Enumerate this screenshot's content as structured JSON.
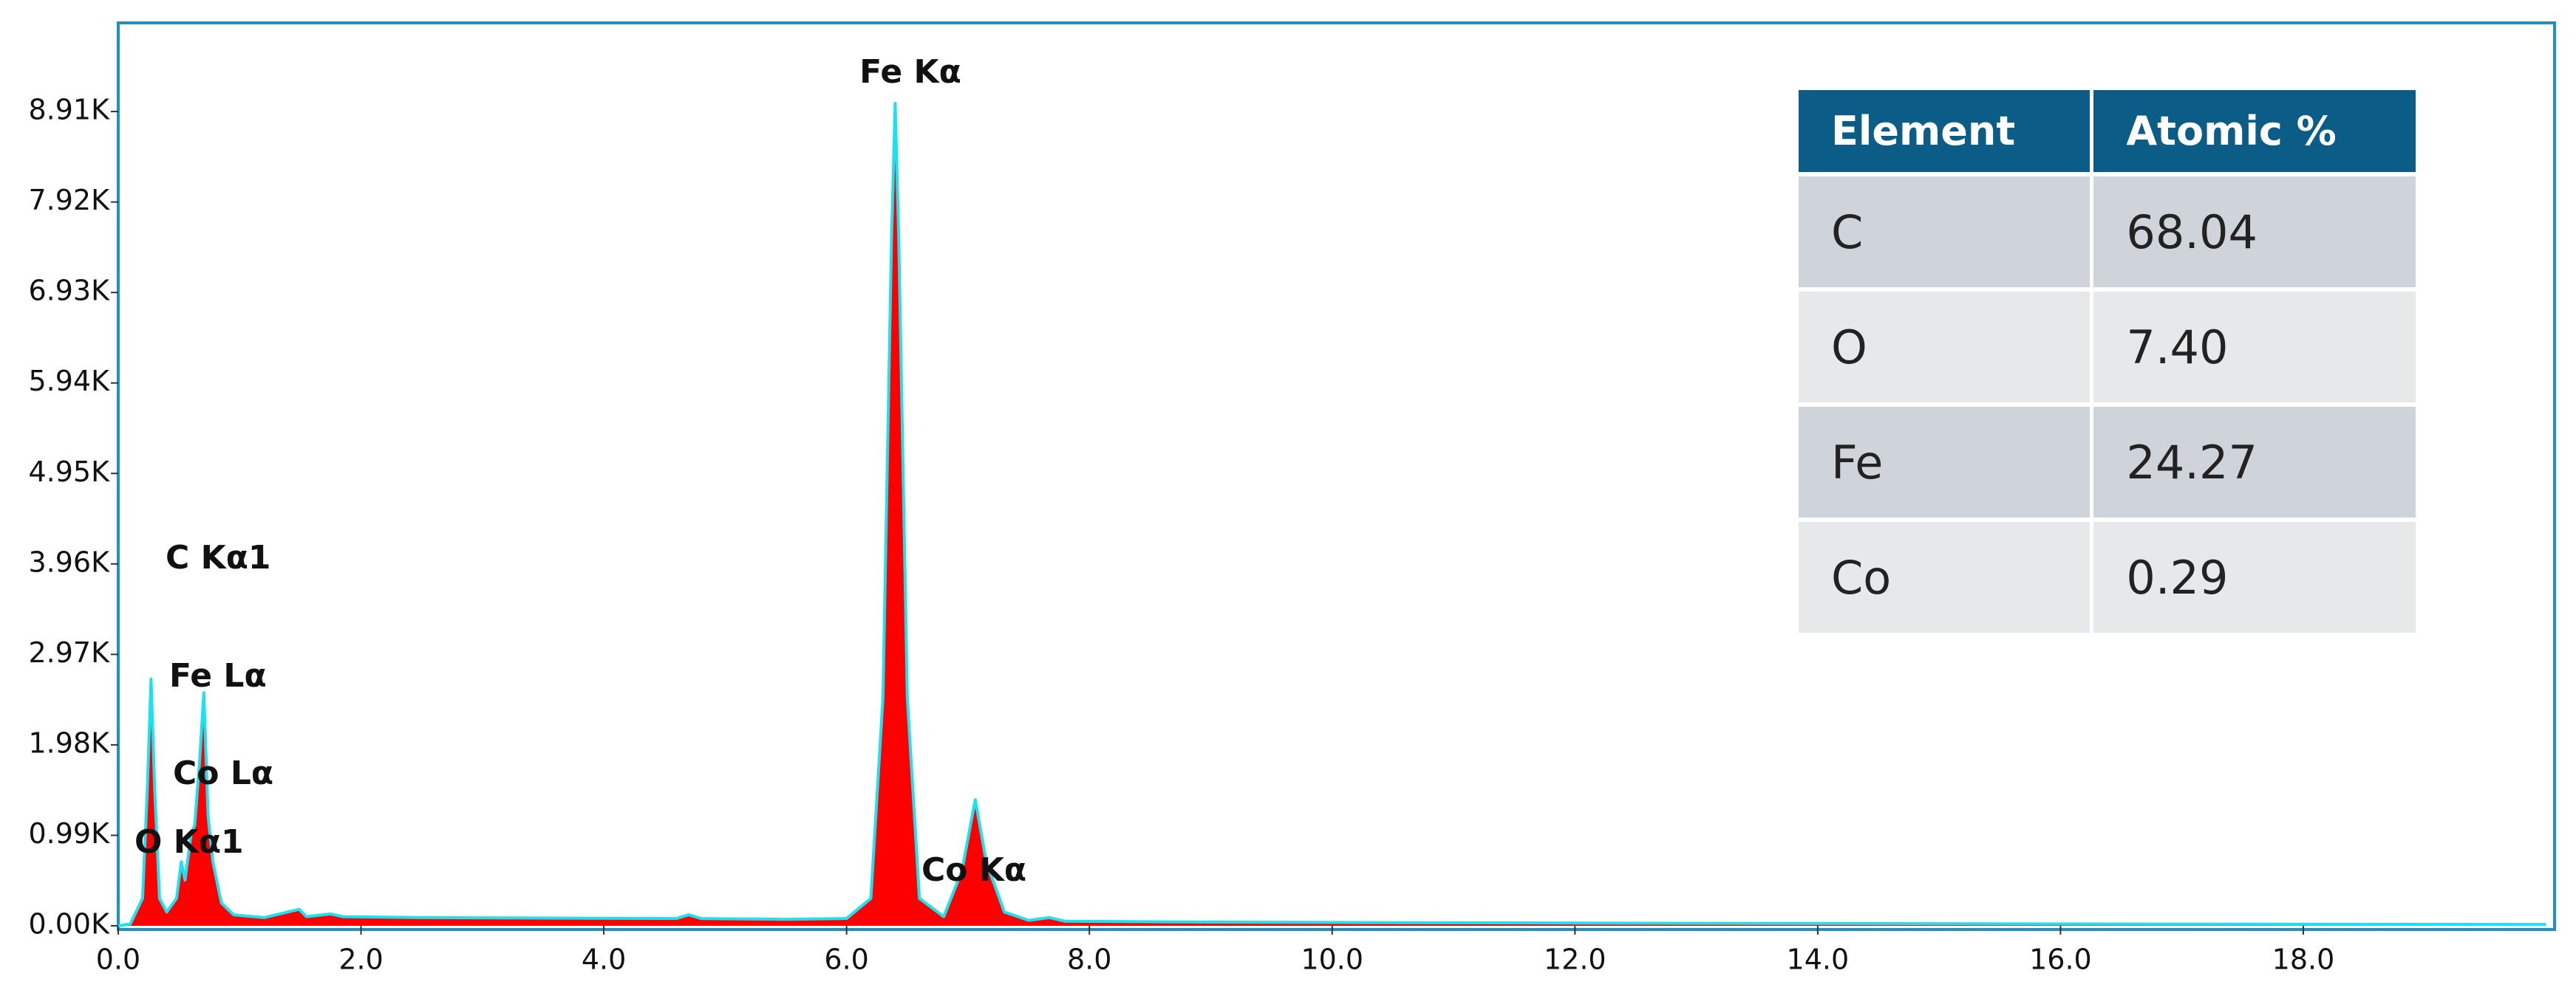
{
  "chart_data": {
    "type": "area",
    "x": [
      0.0,
      0.1,
      0.2,
      0.24,
      0.27,
      0.3,
      0.34,
      0.4,
      0.48,
      0.52,
      0.55,
      0.6,
      0.63,
      0.67,
      0.705,
      0.74,
      0.78,
      0.85,
      0.95,
      1.2,
      1.49,
      1.55,
      1.75,
      1.85,
      2.5,
      3.5,
      4.6,
      4.7,
      4.8,
      5.5,
      6.0,
      6.2,
      6.3,
      6.37,
      6.4,
      6.43,
      6.5,
      6.6,
      6.8,
      6.95,
      7.06,
      7.15,
      7.3,
      7.5,
      7.67,
      7.8,
      9.0,
      12.0,
      16.0,
      20.0
    ],
    "values": [
      0,
      20,
      300,
      1500,
      2700,
      1500,
      300,
      150,
      300,
      700,
      500,
      1000,
      1100,
      1800,
      2550,
      1200,
      700,
      250,
      120,
      90,
      180,
      100,
      130,
      100,
      90,
      85,
      80,
      120,
      80,
      70,
      80,
      300,
      2500,
      7500,
      9000,
      7500,
      2500,
      300,
      100,
      600,
      1380,
      700,
      150,
      60,
      90,
      50,
      40,
      30,
      20,
      15
    ],
    "color": "#ff0000",
    "line_color": "#19e3f0",
    "xlim": [
      0,
      20.07
    ],
    "ylim": [
      0,
      9880
    ],
    "xticks": [
      {
        "value": 0,
        "label": "0.0"
      },
      {
        "value": 2,
        "label": "2.0"
      },
      {
        "value": 4,
        "label": "4.0"
      },
      {
        "value": 6,
        "label": "6.0"
      },
      {
        "value": 8,
        "label": "8.0"
      },
      {
        "value": 10,
        "label": "10.0"
      },
      {
        "value": 12,
        "label": "12.0"
      },
      {
        "value": 14,
        "label": "14.0"
      },
      {
        "value": 16,
        "label": "16.0"
      },
      {
        "value": 18,
        "label": "18.0"
      }
    ],
    "yticks": [
      {
        "value": 0,
        "label": "0.00K"
      },
      {
        "value": 990,
        "label": "0.99K"
      },
      {
        "value": 1980,
        "label": "1.98K"
      },
      {
        "value": 2970,
        "label": "2.97K"
      },
      {
        "value": 3960,
        "label": "3.96K"
      },
      {
        "value": 4950,
        "label": "4.95K"
      },
      {
        "value": 5940,
        "label": "5.94K"
      },
      {
        "value": 6930,
        "label": "6.93K"
      },
      {
        "value": 7920,
        "label": "7.92K"
      },
      {
        "value": 8910,
        "label": "8.91K"
      }
    ],
    "annotations": [
      "Fe Kα",
      "C  Kα1",
      "Fe Lα",
      "Co Lα",
      "O  Kα1",
      "Co Kα"
    ],
    "table": {
      "columns": [
        "Element",
        "Atomic %"
      ],
      "rows": [
        [
          "C",
          "68.04"
        ],
        [
          "O",
          "7.40"
        ],
        [
          "Fe",
          "24.27"
        ],
        [
          "Co",
          "0.29"
        ]
      ]
    }
  }
}
